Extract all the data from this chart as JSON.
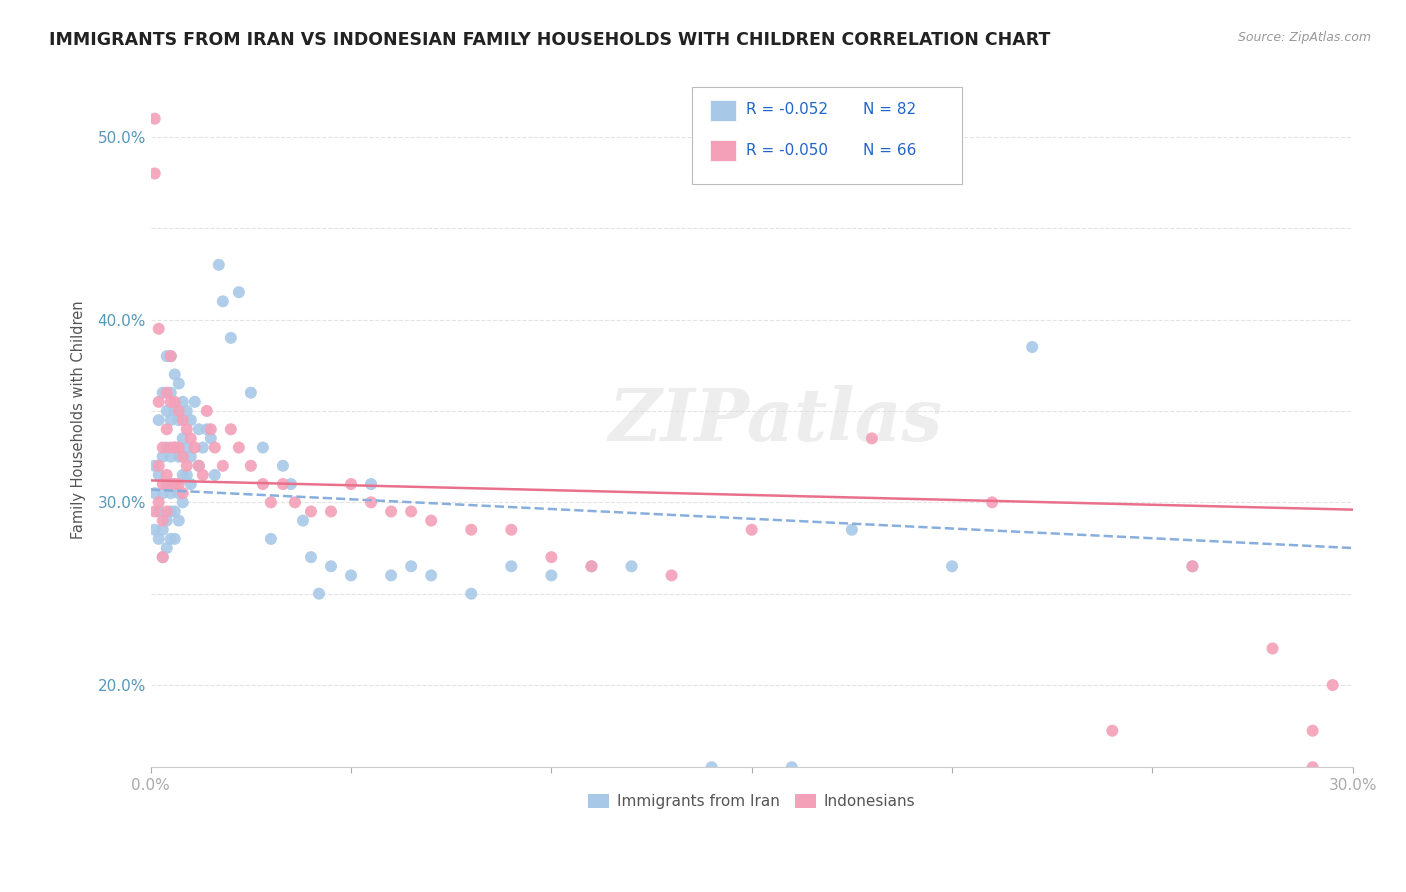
{
  "title": "IMMIGRANTS FROM IRAN VS INDONESIAN FAMILY HOUSEHOLDS WITH CHILDREN CORRELATION CHART",
  "source": "Source: ZipAtlas.com",
  "ylabel": "Family Households with Children",
  "xlim": [
    0.0,
    0.3
  ],
  "ylim": [
    0.155,
    0.535
  ],
  "xtick_positions": [
    0.0,
    0.05,
    0.1,
    0.15,
    0.2,
    0.25,
    0.3
  ],
  "xtick_labels": [
    "0.0%",
    "",
    "",
    "",
    "",
    "",
    "30.0%"
  ],
  "ytick_positions": [
    0.2,
    0.25,
    0.3,
    0.35,
    0.4,
    0.45,
    0.5
  ],
  "ytick_labels": [
    "20.0%",
    "",
    "30.0%",
    "",
    "40.0%",
    "",
    "50.0%"
  ],
  "legend_labels": [
    "Immigrants from Iran",
    "Indonesians"
  ],
  "legend_r_n": [
    [
      "R = -0.052",
      "N = 82"
    ],
    [
      "R = -0.050",
      "N = 66"
    ]
  ],
  "blue_color": "#A8C8E8",
  "pink_color": "#F4A0B8",
  "blue_line_color": "#88AEDD",
  "pink_line_color": "#E8708A",
  "watermark": "ZIPatlas",
  "iran_trend_y": [
    0.307,
    0.275
  ],
  "indo_trend_y": [
    0.312,
    0.296
  ],
  "iran_x": [
    0.001,
    0.001,
    0.001,
    0.002,
    0.002,
    0.002,
    0.002,
    0.003,
    0.003,
    0.003,
    0.003,
    0.003,
    0.004,
    0.004,
    0.004,
    0.004,
    0.004,
    0.004,
    0.005,
    0.005,
    0.005,
    0.005,
    0.005,
    0.005,
    0.005,
    0.006,
    0.006,
    0.006,
    0.006,
    0.006,
    0.006,
    0.007,
    0.007,
    0.007,
    0.007,
    0.007,
    0.008,
    0.008,
    0.008,
    0.008,
    0.009,
    0.009,
    0.009,
    0.01,
    0.01,
    0.01,
    0.011,
    0.012,
    0.012,
    0.013,
    0.014,
    0.015,
    0.016,
    0.017,
    0.018,
    0.02,
    0.022,
    0.025,
    0.028,
    0.03,
    0.033,
    0.035,
    0.038,
    0.04,
    0.042,
    0.045,
    0.05,
    0.055,
    0.06,
    0.065,
    0.07,
    0.08,
    0.09,
    0.1,
    0.11,
    0.12,
    0.14,
    0.16,
    0.175,
    0.2,
    0.22,
    0.26
  ],
  "iran_y": [
    0.285,
    0.305,
    0.32,
    0.345,
    0.295,
    0.28,
    0.315,
    0.36,
    0.325,
    0.305,
    0.285,
    0.27,
    0.38,
    0.35,
    0.33,
    0.31,
    0.29,
    0.275,
    0.38,
    0.36,
    0.345,
    0.325,
    0.305,
    0.295,
    0.28,
    0.37,
    0.35,
    0.33,
    0.31,
    0.295,
    0.28,
    0.365,
    0.345,
    0.325,
    0.305,
    0.29,
    0.355,
    0.335,
    0.315,
    0.3,
    0.35,
    0.33,
    0.315,
    0.345,
    0.325,
    0.31,
    0.355,
    0.34,
    0.32,
    0.33,
    0.34,
    0.335,
    0.315,
    0.43,
    0.41,
    0.39,
    0.415,
    0.36,
    0.33,
    0.28,
    0.32,
    0.31,
    0.29,
    0.27,
    0.25,
    0.265,
    0.26,
    0.31,
    0.26,
    0.265,
    0.26,
    0.25,
    0.265,
    0.26,
    0.265,
    0.265,
    0.155,
    0.155,
    0.285,
    0.265,
    0.385,
    0.265
  ],
  "indo_x": [
    0.001,
    0.001,
    0.001,
    0.002,
    0.002,
    0.002,
    0.002,
    0.003,
    0.003,
    0.003,
    0.003,
    0.004,
    0.004,
    0.004,
    0.004,
    0.005,
    0.005,
    0.005,
    0.005,
    0.006,
    0.006,
    0.006,
    0.007,
    0.007,
    0.007,
    0.008,
    0.008,
    0.008,
    0.009,
    0.009,
    0.01,
    0.011,
    0.012,
    0.013,
    0.014,
    0.015,
    0.016,
    0.018,
    0.02,
    0.022,
    0.025,
    0.028,
    0.03,
    0.033,
    0.036,
    0.04,
    0.045,
    0.05,
    0.055,
    0.06,
    0.065,
    0.07,
    0.08,
    0.09,
    0.1,
    0.11,
    0.13,
    0.15,
    0.18,
    0.21,
    0.24,
    0.26,
    0.28,
    0.29,
    0.29,
    0.295
  ],
  "indo_y": [
    0.295,
    0.51,
    0.48,
    0.395,
    0.355,
    0.32,
    0.3,
    0.33,
    0.31,
    0.29,
    0.27,
    0.36,
    0.34,
    0.315,
    0.295,
    0.38,
    0.355,
    0.33,
    0.31,
    0.355,
    0.33,
    0.31,
    0.35,
    0.33,
    0.31,
    0.345,
    0.325,
    0.305,
    0.34,
    0.32,
    0.335,
    0.33,
    0.32,
    0.315,
    0.35,
    0.34,
    0.33,
    0.32,
    0.34,
    0.33,
    0.32,
    0.31,
    0.3,
    0.31,
    0.3,
    0.295,
    0.295,
    0.31,
    0.3,
    0.295,
    0.295,
    0.29,
    0.285,
    0.285,
    0.27,
    0.265,
    0.26,
    0.285,
    0.335,
    0.3,
    0.175,
    0.265,
    0.22,
    0.175,
    0.155,
    0.2
  ]
}
